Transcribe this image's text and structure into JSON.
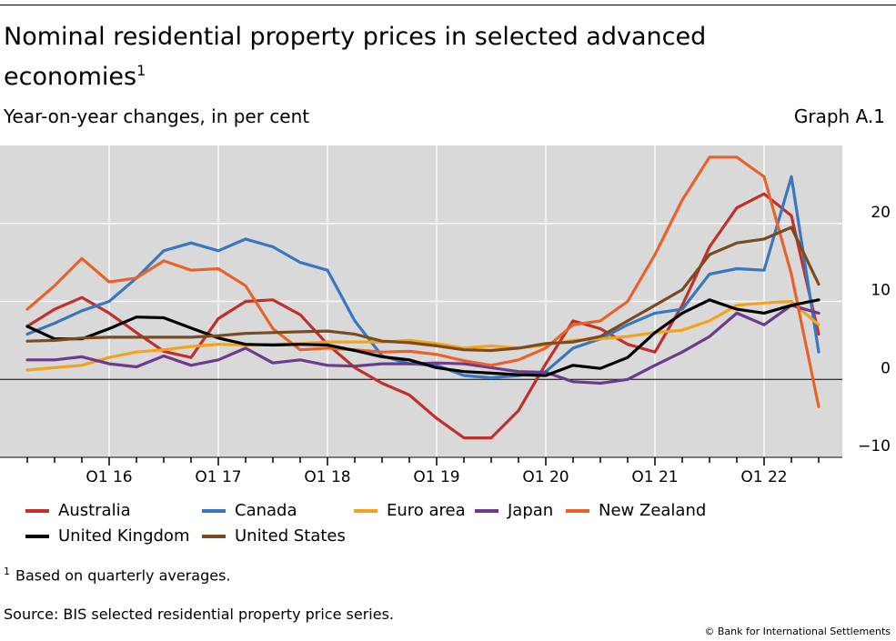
{
  "header": {
    "title": "Nominal residential property prices in selected advanced economies",
    "title_sup": "1",
    "subtitle": "Year-on-year changes, in per cent",
    "graph_id": "Graph A.1"
  },
  "footer": {
    "footnote_marker": "1",
    "footnote_text": "Based on quarterly averages.",
    "source": "Source: BIS selected residential property price series.",
    "copyright": "© Bank for International Settlements"
  },
  "chart_data": {
    "type": "line",
    "x": [
      "2015Q2",
      "2015Q3",
      "2015Q4",
      "2016Q1",
      "2016Q2",
      "2016Q3",
      "2016Q4",
      "2017Q1",
      "2017Q2",
      "2017Q3",
      "2017Q4",
      "2018Q1",
      "2018Q2",
      "2018Q3",
      "2018Q4",
      "2019Q1",
      "2019Q2",
      "2019Q3",
      "2019Q4",
      "2020Q1",
      "2020Q2",
      "2020Q3",
      "2020Q4",
      "2021Q1",
      "2021Q2",
      "2021Q3",
      "2021Q4",
      "2022Q1",
      "2022Q2",
      "2022Q3"
    ],
    "x_tick_labels": [
      "Q1 16",
      "Q1 17",
      "Q1 18",
      "Q1 19",
      "Q1 20",
      "Q1 21",
      "Q1 22"
    ],
    "ylim": [
      -10,
      30
    ],
    "y_ticks": [
      -10,
      0,
      10,
      20
    ],
    "grid": true,
    "zero_line": true,
    "series": [
      {
        "name": "Australia",
        "color": "#c0312b",
        "values": [
          6.8,
          9.0,
          10.5,
          8.5,
          6.0,
          3.6,
          2.8,
          7.8,
          10.0,
          10.2,
          8.3,
          4.5,
          1.5,
          -0.5,
          -2.0,
          -5.0,
          -7.5,
          -7.5,
          -4.0,
          2.0,
          7.5,
          6.5,
          4.5,
          3.5,
          9.5,
          17.0,
          22.0,
          23.8,
          21.0,
          5.8
        ]
      },
      {
        "name": "Canada",
        "color": "#3878c0",
        "values": [
          5.8,
          7.2,
          8.8,
          10.0,
          13.0,
          16.5,
          17.5,
          16.5,
          18.0,
          17.0,
          15.0,
          14.0,
          7.5,
          3.0,
          2.0,
          1.8,
          0.5,
          0.2,
          0.5,
          1.0,
          4.0,
          5.2,
          7.0,
          8.5,
          9.0,
          13.5,
          14.2,
          14.0,
          26.0,
          3.5
        ]
      },
      {
        "name": "Euro area",
        "color": "#f3a21b",
        "values": [
          1.2,
          1.5,
          1.8,
          2.8,
          3.5,
          3.8,
          4.2,
          4.5,
          4.4,
          4.5,
          4.6,
          4.8,
          4.8,
          4.8,
          5.0,
          4.6,
          4.0,
          4.3,
          4.0,
          4.4,
          5.0,
          5.2,
          5.5,
          6.0,
          6.3,
          7.5,
          9.5,
          9.8,
          10.0,
          7.0
        ]
      },
      {
        "name": "Japan",
        "color": "#6c3b8d",
        "values": [
          2.5,
          2.5,
          2.9,
          2.0,
          1.6,
          3.0,
          1.8,
          2.5,
          4.0,
          2.1,
          2.5,
          1.8,
          1.7,
          2.0,
          2.0,
          2.1,
          2.0,
          1.5,
          1.0,
          0.9,
          -0.3,
          -0.5,
          0.0,
          1.8,
          3.5,
          5.5,
          8.5,
          7.0,
          9.5,
          8.5
        ]
      },
      {
        "name": "New Zealand",
        "color": "#e8632b",
        "values": [
          9.0,
          12.0,
          15.5,
          12.5,
          13.0,
          15.2,
          14.0,
          14.2,
          12.0,
          6.5,
          3.8,
          4.0,
          3.8,
          3.5,
          3.6,
          3.2,
          2.4,
          1.8,
          2.5,
          4.0,
          7.0,
          7.5,
          10.0,
          16.0,
          23.0,
          28.5,
          28.5,
          26.0,
          13.5,
          -3.5
        ]
      },
      {
        "name": "United Kingdom",
        "color": "#000000",
        "values": [
          6.8,
          5.2,
          5.2,
          6.5,
          8.0,
          7.9,
          6.6,
          5.3,
          4.5,
          4.4,
          4.5,
          4.4,
          3.7,
          2.9,
          2.5,
          1.5,
          1.0,
          0.8,
          0.6,
          0.5,
          1.8,
          1.4,
          2.8,
          6.0,
          8.5,
          10.2,
          9.0,
          8.5,
          9.5,
          10.2
        ]
      },
      {
        "name": "United States",
        "color": "#7a4a20",
        "values": [
          4.9,
          5.0,
          5.3,
          5.4,
          5.4,
          5.4,
          5.4,
          5.6,
          5.9,
          6.0,
          6.1,
          6.2,
          5.8,
          4.9,
          4.7,
          4.3,
          3.8,
          3.7,
          4.0,
          4.6,
          4.8,
          5.5,
          7.5,
          9.5,
          11.5,
          16.0,
          17.5,
          18.0,
          19.5,
          12.2
        ]
      }
    ]
  }
}
